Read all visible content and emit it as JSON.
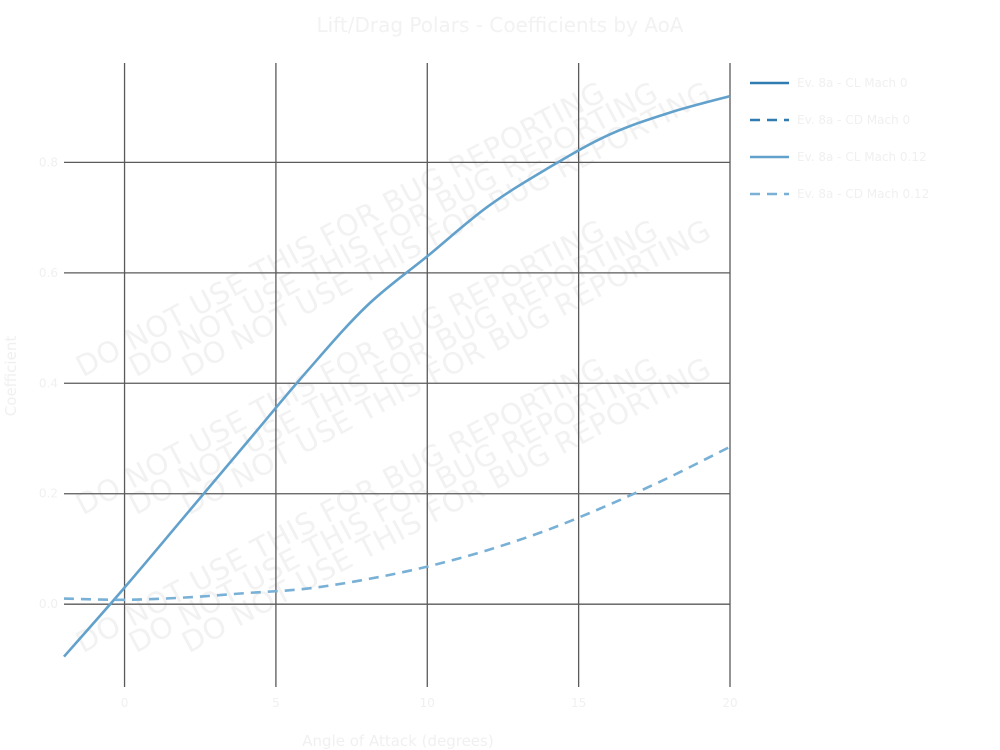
{
  "chart_data": {
    "type": "line",
    "title": "Lift/Drag Polars - Coefficients by AoA",
    "xlabel": "Angle of Attack (degrees)",
    "ylabel": "Coefficient",
    "xlim": [
      -2,
      20
    ],
    "ylim": [
      -0.15,
      0.98
    ],
    "xticks": [
      0,
      5,
      10,
      15,
      20
    ],
    "yticks": [
      0.0,
      0.2,
      0.4,
      0.6,
      0.8
    ],
    "ytick_labels": [
      "0.0",
      "0.2",
      "0.4",
      "0.6",
      "0.8"
    ],
    "grid": true,
    "legend_position": "upper-right outside",
    "series": [
      {
        "name": "Ev. 8a - CL Mach 0",
        "style": "solid",
        "color": "#2f7bb2",
        "x": [],
        "y": []
      },
      {
        "name": "Ev. 8a - CD Mach 0",
        "style": "dashed",
        "color": "#2f7bb2",
        "x": [],
        "y": []
      },
      {
        "name": "Ev. 8a - CL Mach 0.12",
        "style": "solid",
        "color": "#62a1cc",
        "x": [
          -2,
          0,
          2,
          4,
          6,
          8,
          10,
          12,
          14,
          16,
          18,
          20
        ],
        "y": [
          -0.095,
          0.03,
          0.16,
          0.29,
          0.42,
          0.54,
          0.63,
          0.72,
          0.79,
          0.85,
          0.89,
          0.92
        ]
      },
      {
        "name": "Ev. 8a - CD Mach 0.12",
        "style": "dashed",
        "color": "#78b0d6",
        "x": [
          -2,
          0,
          2,
          4,
          6,
          8,
          10,
          12,
          14,
          16,
          18,
          20
        ],
        "y": [
          0.01,
          0.008,
          0.012,
          0.02,
          0.028,
          0.045,
          0.068,
          0.098,
          0.135,
          0.18,
          0.23,
          0.285
        ]
      }
    ],
    "watermark_text": "DO NOT USE THIS FOR BUG REPORTING"
  }
}
